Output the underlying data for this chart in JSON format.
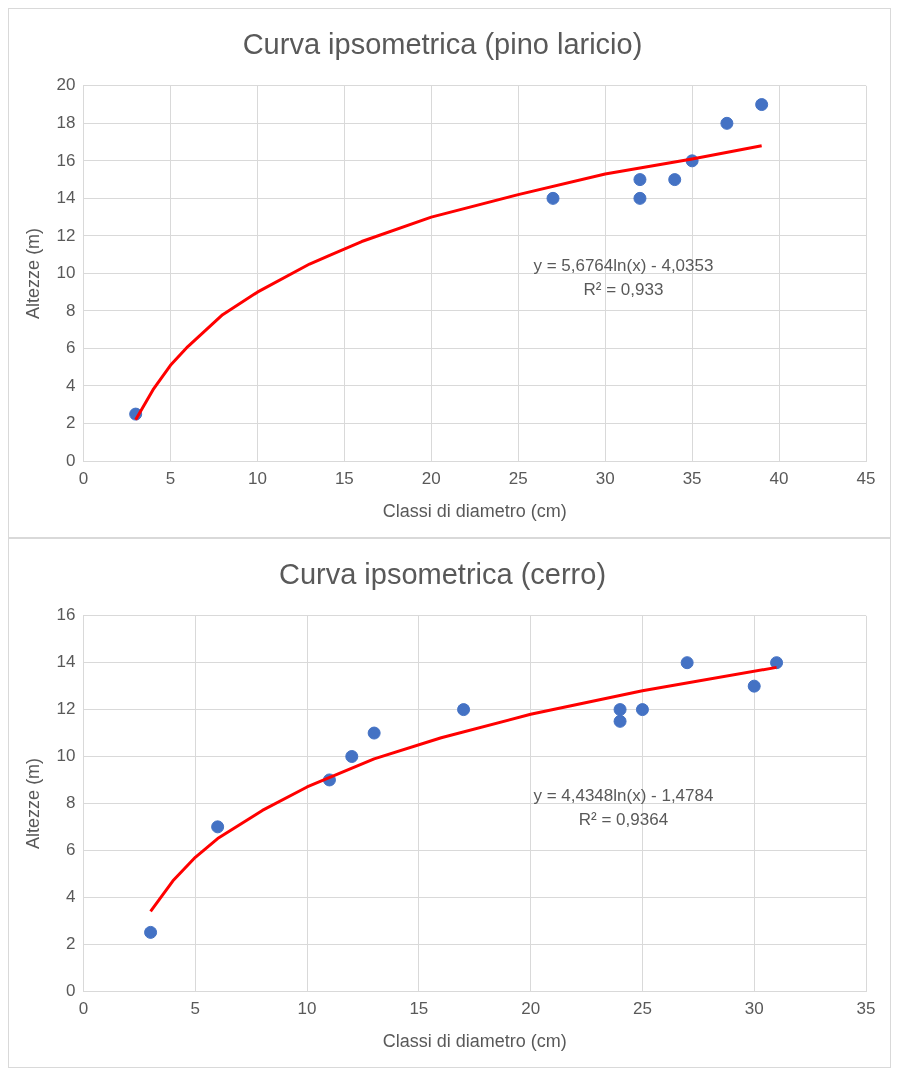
{
  "chart_data": [
    {
      "type": "scatter",
      "title": "Curva ipsometrica (pino laricio)",
      "xlabel": "Classi di diametro (cm)",
      "ylabel": "Altezze (m)",
      "xlim": [
        0,
        45
      ],
      "xticks": [
        0,
        5,
        10,
        15,
        20,
        25,
        30,
        35,
        40,
        45
      ],
      "ylim": [
        0,
        20
      ],
      "yticks": [
        0,
        2,
        4,
        6,
        8,
        10,
        12,
        14,
        16,
        18,
        20
      ],
      "grid": true,
      "legend": false,
      "series": [
        {
          "type": "scatter",
          "color": "#4472c4",
          "marker": "circle",
          "x": [
            3,
            27,
            32,
            32,
            34,
            35,
            37,
            39
          ],
          "values": [
            2.5,
            14,
            15,
            14,
            15,
            16,
            18,
            19
          ]
        },
        {
          "type": "line",
          "color": "#ff0000",
          "marker": "none",
          "x": [
            3,
            4,
            5,
            6,
            8,
            10,
            13,
            16,
            20,
            25,
            30,
            35,
            39
          ],
          "values": [
            2.2,
            3.8,
            5.1,
            6.1,
            7.8,
            9.0,
            10.5,
            11.7,
            13.0,
            14.2,
            15.3,
            16.1,
            16.8
          ]
        }
      ],
      "annotations": [
        "y = 5,6764ln(x) - 4,0353",
        "R² = 0,933"
      ]
    },
    {
      "type": "scatter",
      "title": "Curva ipsometrica (cerro)",
      "xlabel": "Classi di diametro (cm)",
      "ylabel": "Altezze (m)",
      "xlim": [
        0,
        35
      ],
      "xticks": [
        0,
        5,
        10,
        15,
        20,
        25,
        30,
        35
      ],
      "ylim": [
        0,
        16
      ],
      "yticks": [
        0,
        2,
        4,
        6,
        8,
        10,
        12,
        14,
        16
      ],
      "grid": true,
      "legend": false,
      "series": [
        {
          "type": "scatter",
          "color": "#4472c4",
          "marker": "circle",
          "x": [
            3,
            6,
            11,
            12,
            13,
            17,
            24,
            24,
            25,
            27,
            30,
            31
          ],
          "values": [
            2.5,
            7,
            9,
            10,
            11,
            12,
            12,
            11.5,
            12,
            14,
            13,
            14
          ]
        },
        {
          "type": "line",
          "color": "#ff0000",
          "marker": "none",
          "x": [
            3,
            4,
            5,
            6,
            8,
            10,
            13,
            16,
            20,
            25,
            31
          ],
          "values": [
            3.4,
            4.7,
            5.7,
            6.5,
            7.7,
            8.7,
            9.9,
            10.8,
            11.8,
            12.8,
            13.8
          ]
        }
      ],
      "annotations": [
        "y = 4,4348ln(x) - 1,4784",
        "R² = 0,9364"
      ]
    }
  ]
}
